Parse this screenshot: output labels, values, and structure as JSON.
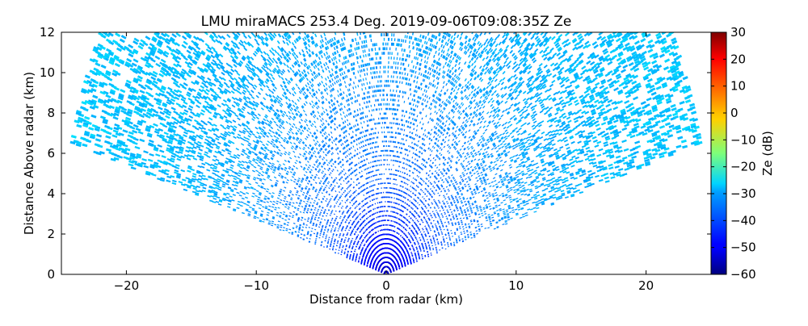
{
  "chart_data": {
    "type": "heatmap",
    "title": "LMU miraMACS 253.4 Deg. 2019-09-06T09:08:35Z  Ze",
    "xlabel": "Distance from radar (km)",
    "ylabel": "Distance Above radar  (km)",
    "colorbar_label": "Ze (dB)",
    "xlim": [
      -25,
      25
    ],
    "ylim": [
      0,
      12
    ],
    "xticks": [
      -20,
      -10,
      0,
      10,
      20
    ],
    "yticks": [
      0,
      2,
      4,
      6,
      8,
      10,
      12
    ],
    "colorbar_range": [
      -60,
      30
    ],
    "colorbar_ticks": [
      -60,
      -50,
      -40,
      -30,
      -20,
      -10,
      0,
      10,
      20,
      30
    ],
    "colormap": "jet",
    "grid": false,
    "scan_elevation_limits_deg": [
      15,
      165
    ],
    "max_range_km": 25,
    "reflectivity_profile": {
      "range_km": [
        0,
        1,
        2,
        3,
        5,
        8,
        12,
        18,
        25
      ],
      "ze_db": [
        -54,
        -50,
        -47,
        -44,
        -40,
        -37,
        -34,
        -32,
        -31
      ]
    }
  }
}
